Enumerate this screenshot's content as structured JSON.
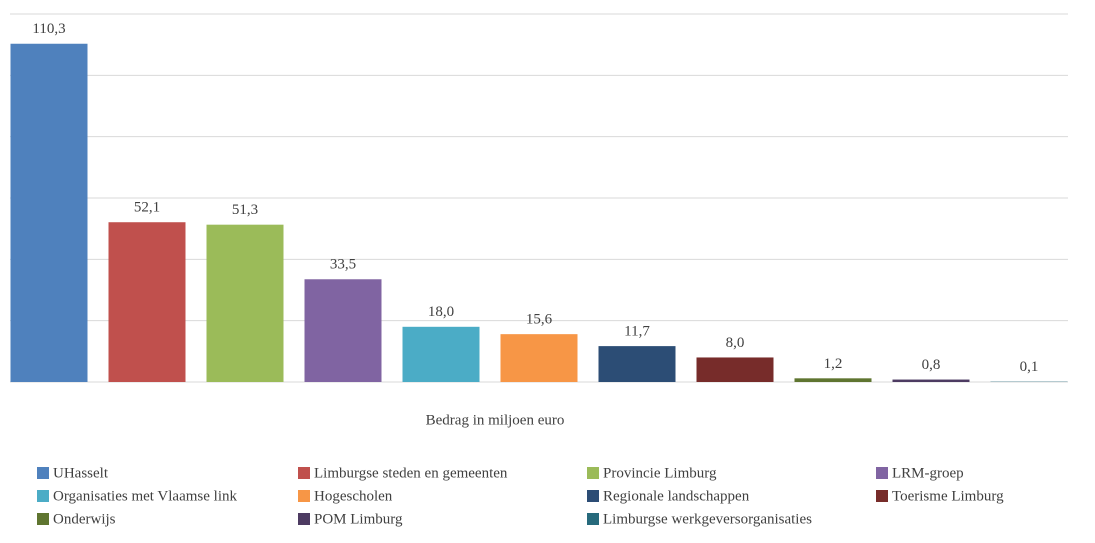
{
  "chart_data": {
    "type": "bar",
    "categories": [
      "UHasselt",
      "Limburgse steden en gemeenten",
      "Provincie Limburg",
      "LRM-groep",
      "Organisaties met Vlaamse link",
      "Hogescholen",
      "Regionale landschappen",
      "Toerisme Limburg",
      "Onderwijs",
      "POM Limburg",
      "Limburgse werkgeversorganisaties"
    ],
    "values": [
      110.3,
      52.1,
      51.3,
      33.5,
      18.0,
      15.6,
      11.7,
      8.0,
      1.2,
      0.8,
      0.1
    ],
    "value_labels": [
      "110,3",
      "52,1",
      "51,3",
      "33,5",
      "18,0",
      "15,6",
      "11,7",
      "8,0",
      "1,2",
      "0,8",
      "0,1"
    ],
    "colors": [
      "#4f81bd",
      "#c0504d",
      "#9bbb59",
      "#8064a2",
      "#4bacc6",
      "#f79646",
      "#2c4d75",
      "#772c2a",
      "#5f7530",
      "#4d3b62",
      "#276a7c"
    ],
    "x_label": "Bedrag in miljoen euro",
    "ylim": [
      0,
      120
    ],
    "yticks": [
      0,
      20,
      40,
      60,
      80,
      100,
      120
    ],
    "grid": true
  }
}
